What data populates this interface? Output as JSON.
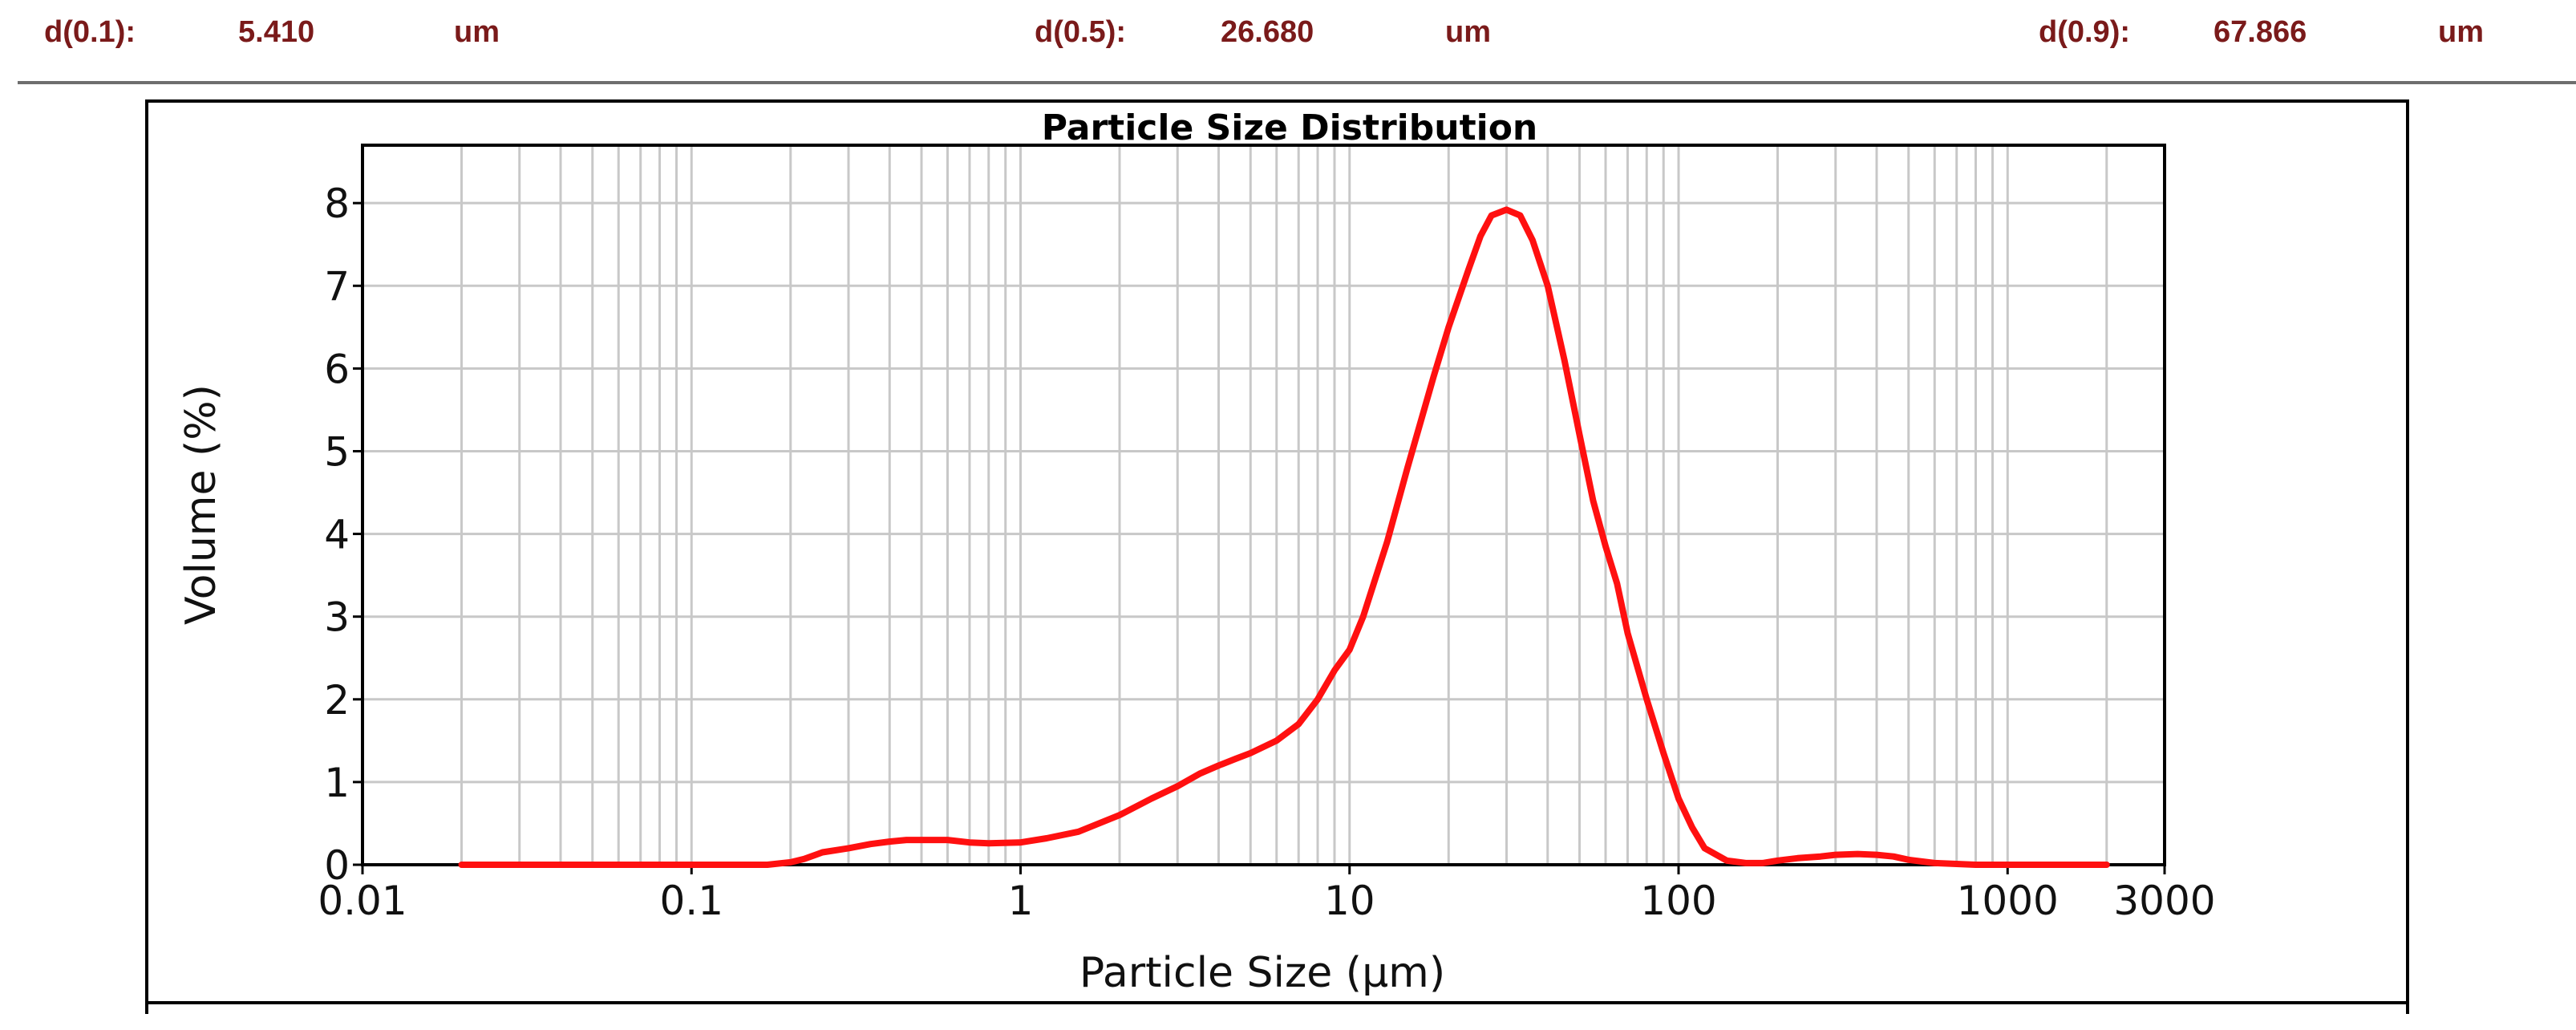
{
  "summary": {
    "d10": {
      "label": "d(0.1):",
      "value": "5.410",
      "unit": "um"
    },
    "d50": {
      "label": "d(0.5):",
      "value": "26.680",
      "unit": "um"
    },
    "d90": {
      "label": "d(0.9):",
      "value": "67.866",
      "unit": "um"
    },
    "text_color": "#7a1a1a"
  },
  "chart_data": {
    "type": "line",
    "title": "Particle Size Distribution",
    "xlabel": "Particle Size (μm)",
    "ylabel": "Volume (%)",
    "x_scale": "log",
    "xlim": [
      0.01,
      3000
    ],
    "ylim": [
      0,
      8.7
    ],
    "x_ticks": [
      0.01,
      0.1,
      1,
      10,
      100,
      1000,
      3000
    ],
    "x_tick_labels": [
      "0.01",
      "0.1",
      "1",
      "10",
      "100",
      "1000",
      "3000"
    ],
    "y_ticks": [
      0,
      1,
      2,
      3,
      4,
      5,
      6,
      7,
      8
    ],
    "y_tick_labels": [
      "0",
      "1",
      "2",
      "3",
      "4",
      "5",
      "6",
      "7",
      "8"
    ],
    "grid": true,
    "line_color": "#ff1010",
    "grid_color": "#c8c8c8",
    "series": [
      {
        "name": "Volume",
        "x": [
          0.02,
          0.05,
          0.1,
          0.17,
          0.2,
          0.22,
          0.25,
          0.3,
          0.35,
          0.4,
          0.45,
          0.5,
          0.6,
          0.7,
          0.8,
          1.0,
          1.2,
          1.5,
          2.0,
          2.5,
          3.0,
          3.5,
          4.0,
          4.5,
          5.0,
          6.0,
          7.0,
          8.0,
          9.0,
          10.0,
          11.0,
          13.0,
          15.0,
          18.0,
          20.0,
          23.0,
          25.0,
          27.0,
          30.0,
          33.0,
          36.0,
          40.0,
          45.0,
          50.0,
          55.0,
          60.0,
          65.0,
          70.0,
          80.0,
          90.0,
          100.0,
          110.0,
          120.0,
          140.0,
          160.0,
          180.0,
          200.0,
          230.0,
          270.0,
          300.0,
          350.0,
          400.0,
          450.0,
          500.0,
          600.0,
          800.0,
          1000.0,
          1500.0,
          2000.0
        ],
        "y": [
          0,
          0,
          0,
          0,
          0.03,
          0.07,
          0.15,
          0.2,
          0.25,
          0.28,
          0.3,
          0.3,
          0.3,
          0.27,
          0.26,
          0.27,
          0.32,
          0.4,
          0.6,
          0.8,
          0.95,
          1.1,
          1.2,
          1.28,
          1.35,
          1.5,
          1.7,
          2.0,
          2.35,
          2.6,
          3.0,
          3.9,
          4.8,
          5.9,
          6.5,
          7.2,
          7.6,
          7.85,
          7.92,
          7.85,
          7.55,
          7.0,
          6.1,
          5.2,
          4.4,
          3.85,
          3.4,
          2.8,
          2.0,
          1.35,
          0.8,
          0.45,
          0.2,
          0.05,
          0.02,
          0.02,
          0.05,
          0.08,
          0.1,
          0.12,
          0.13,
          0.12,
          0.1,
          0.06,
          0.02,
          0.0,
          0,
          0,
          0
        ]
      }
    ]
  }
}
